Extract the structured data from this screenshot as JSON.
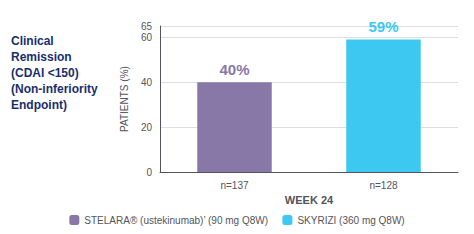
{
  "chart_data": {
    "type": "bar",
    "title": "Clinical\nRemission\n(CDAI <150)\n(Non-inferiority\nEndpoint)",
    "categories": [
      "n=137",
      "n=128"
    ],
    "series": [
      {
        "name": "STELARA® (ustekinumab)’ (90 mg Q8W)",
        "color": "#8878a8",
        "values": [
          40,
          null
        ],
        "value_labels": [
          "40%",
          null
        ]
      },
      {
        "name": "SKYRIZI (360 mg Q8W)",
        "color": "#3cc8f0",
        "values": [
          null,
          59
        ],
        "value_labels": [
          null,
          "59%"
        ]
      }
    ],
    "xlabel": "WEEK 24",
    "ylabel": "PATIENTS (%)",
    "ylim": [
      0,
      65
    ],
    "yticks": [
      0,
      20,
      40,
      60
    ],
    "grid": true,
    "legend": "bottom",
    "data_labels": true
  }
}
